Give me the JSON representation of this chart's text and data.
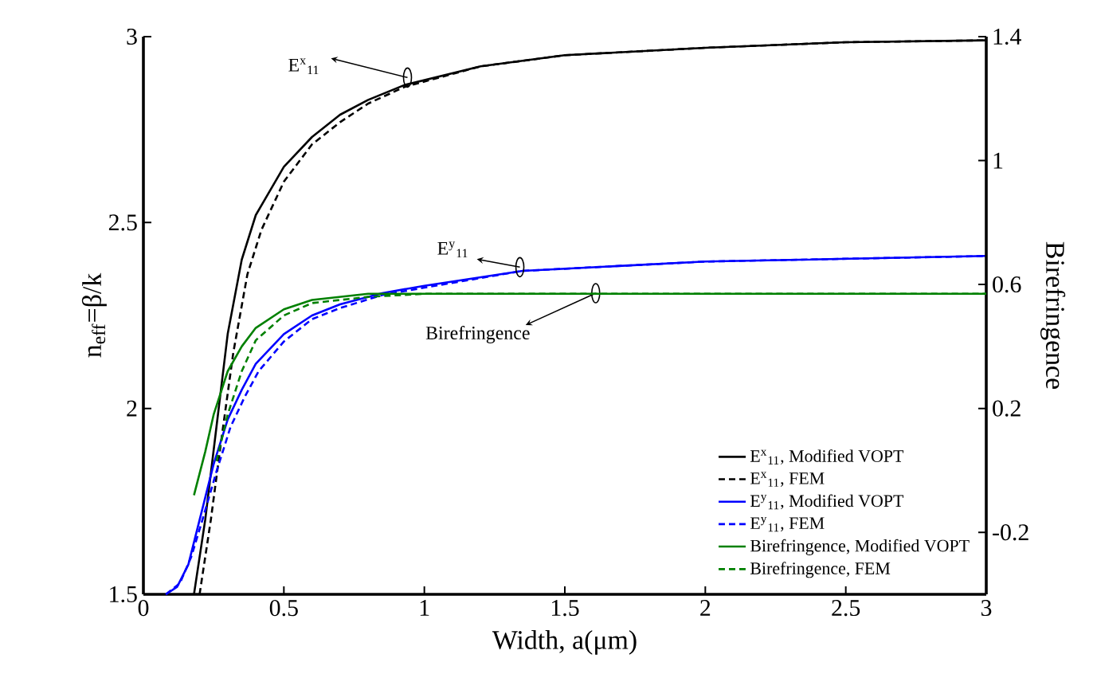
{
  "chart_data": {
    "type": "line",
    "xlabel": "Width, a(μm)",
    "ylabel": "n$_{eff}$=β/k",
    "y2label": "Birefringence",
    "xlim": [
      0,
      3
    ],
    "xticks": [
      0,
      0.5,
      1,
      1.5,
      2,
      2.5,
      3
    ],
    "ylim": [
      1.5,
      3
    ],
    "yticks": [
      1.5,
      2,
      2.5,
      3
    ],
    "y2lim": [
      -0.4,
      1.4
    ],
    "y2ticks": [
      -0.2,
      0.2,
      0.6,
      1,
      1.4
    ],
    "legend": "bottom right",
    "annotations": [
      {
        "text": "E$^{x}$$_{11}$",
        "x": 0.94,
        "y": 2.89
      },
      {
        "text": "E$^{y}$$_{11}$",
        "x": 1.34,
        "y": 2.38
      },
      {
        "text": "Birefringence",
        "x": 1.61,
        "y": 2.31
      }
    ],
    "series": [
      {
        "name": "E$^{x}$$_{11}$, Modified VOPT",
        "color": "#000000",
        "line_style": "solid",
        "x": [
          0.18,
          0.22,
          0.26,
          0.3,
          0.35,
          0.4,
          0.5,
          0.6,
          0.7,
          0.8,
          0.93,
          1.2,
          1.5,
          2,
          2.5,
          3
        ],
        "values": [
          1.5,
          1.7,
          1.95,
          2.2,
          2.4,
          2.52,
          2.65,
          2.73,
          2.79,
          2.83,
          2.87,
          2.92,
          2.95,
          2.97,
          2.985,
          2.99
        ]
      },
      {
        "name": "E$^{x}$$_{11}$, FEM",
        "color": "#000000",
        "line_style": "dashed",
        "x": [
          0.2,
          0.24,
          0.28,
          0.32,
          0.37,
          0.42,
          0.5,
          0.6,
          0.7,
          0.8,
          0.93,
          1.2,
          1.5,
          2,
          2.5,
          3
        ],
        "values": [
          1.5,
          1.7,
          1.93,
          2.15,
          2.36,
          2.48,
          2.61,
          2.71,
          2.77,
          2.82,
          2.865,
          2.92,
          2.95,
          2.97,
          2.985,
          2.99
        ]
      },
      {
        "name": "E$^{y}$$_{11}$, Modified VOPT",
        "color": "#0000ff",
        "line_style": "solid",
        "x": [
          0.08,
          0.12,
          0.16,
          0.2,
          0.25,
          0.3,
          0.35,
          0.4,
          0.5,
          0.6,
          0.7,
          0.85,
          1,
          1.35,
          2,
          3
        ],
        "values": [
          1.5,
          1.52,
          1.58,
          1.7,
          1.85,
          1.97,
          2.05,
          2.12,
          2.2,
          2.25,
          2.28,
          2.31,
          2.33,
          2.37,
          2.395,
          2.41
        ]
      },
      {
        "name": "E$^{y}$$_{11}$, FEM",
        "color": "#0000ff",
        "line_style": "dashed",
        "x": [
          0.08,
          0.13,
          0.17,
          0.21,
          0.26,
          0.31,
          0.36,
          0.41,
          0.5,
          0.6,
          0.7,
          0.85,
          1,
          1.35,
          2,
          3
        ],
        "values": [
          1.5,
          1.53,
          1.6,
          1.7,
          1.83,
          1.95,
          2.03,
          2.1,
          2.18,
          2.24,
          2.27,
          2.305,
          2.325,
          2.37,
          2.395,
          2.41
        ]
      },
      {
        "name": "Birefringence, Modified VOPT",
        "color": "#008000",
        "line_style": "solid",
        "axis": "y2",
        "x": [
          0.18,
          0.22,
          0.25,
          0.3,
          0.35,
          0.4,
          0.5,
          0.6,
          0.8,
          1,
          3
        ],
        "values": [
          -0.08,
          0.06,
          0.18,
          0.32,
          0.4,
          0.46,
          0.52,
          0.55,
          0.57,
          0.57,
          0.57
        ]
      },
      {
        "name": "Birefringence, FEM",
        "color": "#008000",
        "line_style": "dashed",
        "axis": "y2",
        "x": [
          0.26,
          0.3,
          0.35,
          0.4,
          0.5,
          0.6,
          0.8,
          1,
          3
        ],
        "values": [
          0.03,
          0.18,
          0.32,
          0.42,
          0.5,
          0.54,
          0.56,
          0.57,
          0.57
        ]
      }
    ]
  }
}
